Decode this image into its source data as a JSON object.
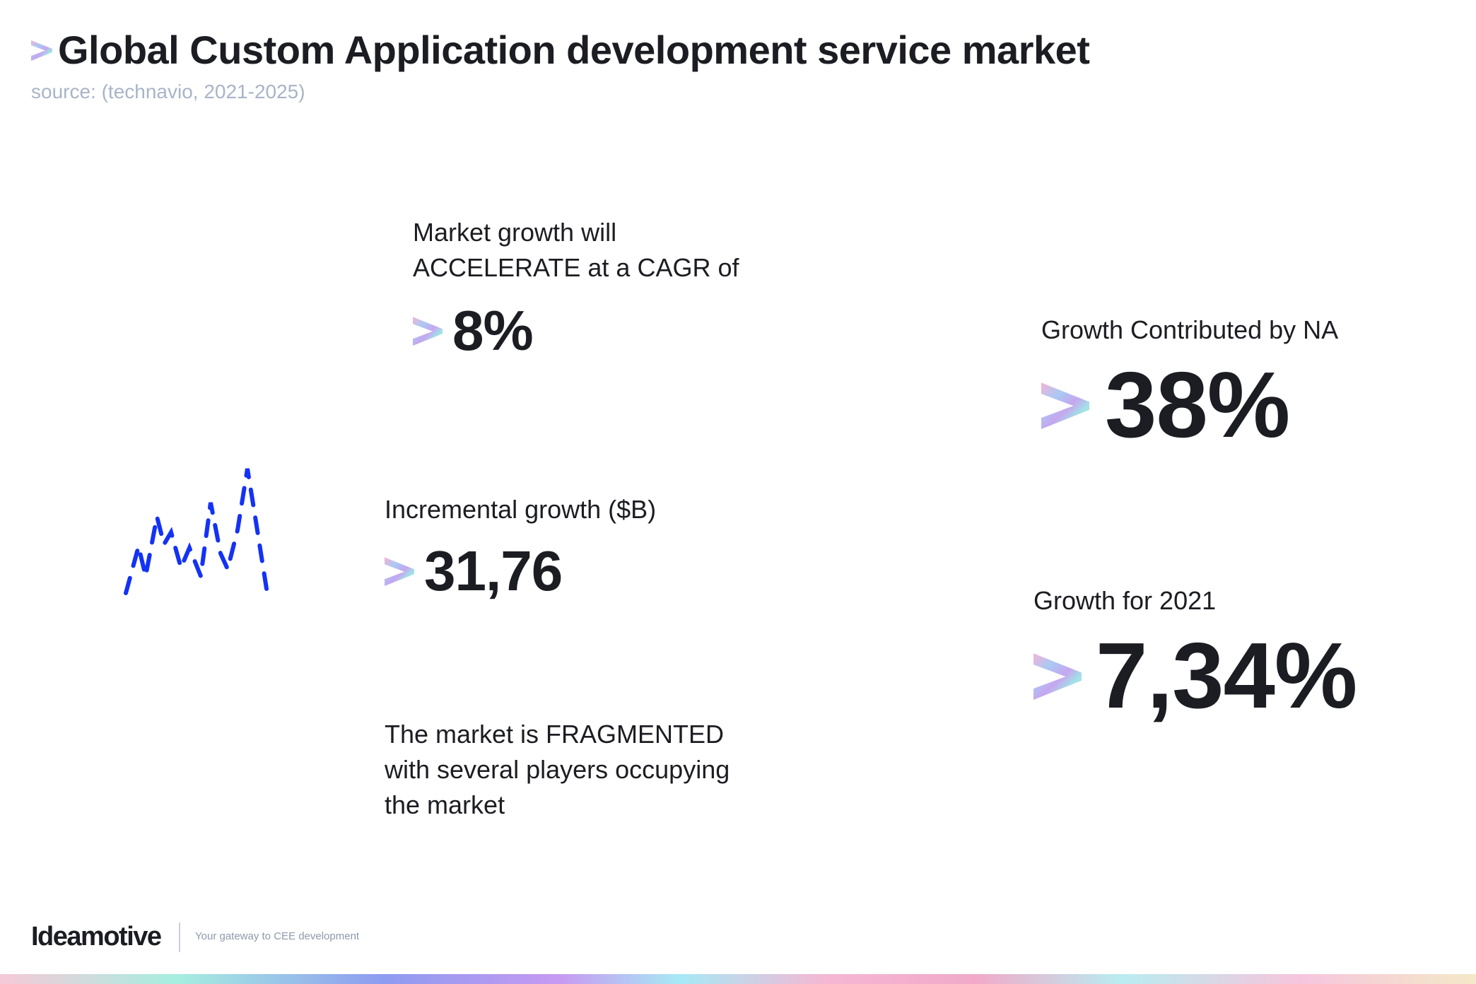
{
  "header": {
    "title": "Global Custom Application development service market",
    "source": "source:  (technavio, 2021-2025)"
  },
  "stats": {
    "cagr": {
      "label_line1": "Market growth will",
      "label_line2": "ACCELERATE at a CAGR of",
      "value": "8%"
    },
    "incremental": {
      "label": "Incremental growth ($B)",
      "value": "31,76"
    },
    "fragmented": {
      "line1": "The market is FRAGMENTED",
      "line2": "with several players occupying",
      "line3": "the market"
    },
    "na": {
      "label": "Growth Contributed by NA",
      "value": "38%"
    },
    "growth2021": {
      "label": "Growth for 2021",
      "value": "7,34%"
    }
  },
  "icons": {
    "bullet": "chevron-right-icon",
    "illustration": "dashed-line-chart-icon"
  },
  "colors": {
    "text": "#1c1d22",
    "source": "#a9b4c8",
    "illustration": "#1432f5"
  },
  "footer": {
    "logo": "Ideamotive",
    "tagline": "Your gateway to CEE development"
  }
}
